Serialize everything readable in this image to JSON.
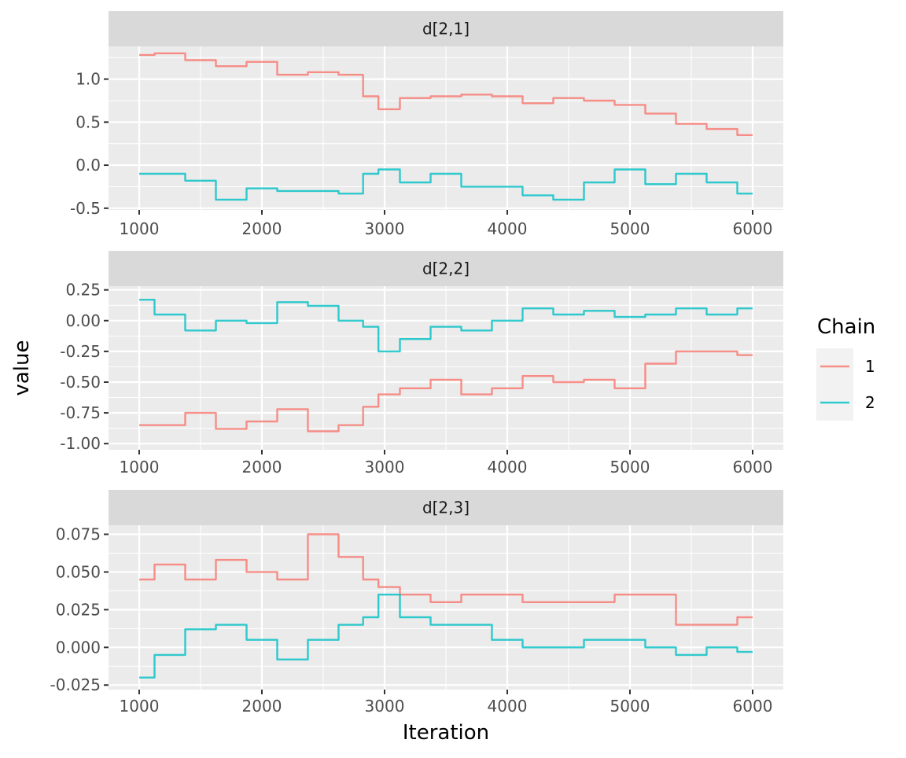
{
  "x_axis_title": "Iteration",
  "y_axis_title": "value",
  "legend": {
    "title": "Chain",
    "items": [
      {
        "label": "1",
        "color": "#F8766D"
      },
      {
        "label": "2",
        "color": "#00BFC4"
      }
    ]
  },
  "chart_data": [
    {
      "type": "line",
      "panel": "d[2,1]",
      "xlabel": "Iteration",
      "ylabel": "value",
      "xlim": [
        750,
        6250
      ],
      "ylim": [
        -0.52,
        1.38
      ],
      "xticks": [
        1000,
        2000,
        3000,
        4000,
        5000,
        6000
      ],
      "xtick_labels": [
        "1000",
        "2000",
        "3000",
        "4000",
        "5000",
        "6000"
      ],
      "yticks": [
        -0.5,
        0,
        0.5,
        1
      ],
      "ytick_labels": [
        "-0.5",
        "0.0",
        "0.5",
        "1.0"
      ],
      "x": [
        1000,
        1250,
        1500,
        1750,
        2000,
        2250,
        2500,
        2750,
        2900,
        3000,
        3250,
        3500,
        3750,
        4000,
        4250,
        4500,
        4750,
        5000,
        5250,
        5500,
        5750,
        6000
      ],
      "series": [
        {
          "name": "1",
          "color": "#F8766D",
          "values": [
            1.28,
            1.3,
            1.22,
            1.15,
            1.2,
            1.05,
            1.08,
            1.05,
            0.8,
            0.65,
            0.78,
            0.8,
            0.82,
            0.8,
            0.72,
            0.78,
            0.75,
            0.7,
            0.6,
            0.48,
            0.42,
            0.35
          ]
        },
        {
          "name": "2",
          "color": "#00BFC4",
          "values": [
            -0.1,
            -0.1,
            -0.18,
            -0.4,
            -0.27,
            -0.3,
            -0.3,
            -0.33,
            -0.1,
            -0.05,
            -0.2,
            -0.1,
            -0.25,
            -0.25,
            -0.35,
            -0.4,
            -0.2,
            -0.05,
            -0.22,
            -0.1,
            -0.2,
            -0.33
          ]
        }
      ]
    },
    {
      "type": "line",
      "panel": "d[2,2]",
      "xlabel": "Iteration",
      "ylabel": "value",
      "xlim": [
        750,
        6250
      ],
      "ylim": [
        -1.05,
        0.28
      ],
      "xticks": [
        1000,
        2000,
        3000,
        4000,
        5000,
        6000
      ],
      "xtick_labels": [
        "1000",
        "2000",
        "3000",
        "4000",
        "5000",
        "6000"
      ],
      "yticks": [
        -1,
        -0.75,
        -0.5,
        -0.25,
        0,
        0.25
      ],
      "ytick_labels": [
        "-1.00",
        "-0.75",
        "-0.50",
        "-0.25",
        "0.00",
        "0.25"
      ],
      "x": [
        1000,
        1250,
        1500,
        1750,
        2000,
        2250,
        2500,
        2750,
        2900,
        3000,
        3250,
        3500,
        3750,
        4000,
        4250,
        4500,
        4750,
        5000,
        5250,
        5500,
        5750,
        6000
      ],
      "series": [
        {
          "name": "1",
          "color": "#F8766D",
          "values": [
            -0.85,
            -0.85,
            -0.75,
            -0.88,
            -0.82,
            -0.72,
            -0.9,
            -0.85,
            -0.7,
            -0.6,
            -0.55,
            -0.48,
            -0.6,
            -0.55,
            -0.45,
            -0.5,
            -0.48,
            -0.55,
            -0.35,
            -0.25,
            -0.25,
            -0.28
          ]
        },
        {
          "name": "2",
          "color": "#00BFC4",
          "values": [
            0.17,
            0.05,
            -0.08,
            0.0,
            -0.02,
            0.15,
            0.12,
            0.0,
            -0.05,
            -0.25,
            -0.15,
            -0.05,
            -0.08,
            0.0,
            0.1,
            0.05,
            0.08,
            0.03,
            0.05,
            0.1,
            0.05,
            0.1
          ]
        }
      ]
    },
    {
      "type": "line",
      "panel": "d[2,3]",
      "xlabel": "Iteration",
      "ylabel": "value",
      "xlim": [
        750,
        6250
      ],
      "ylim": [
        -0.028,
        0.081
      ],
      "xticks": [
        1000,
        2000,
        3000,
        4000,
        5000,
        6000
      ],
      "xtick_labels": [
        "1000",
        "2000",
        "3000",
        "4000",
        "5000",
        "6000"
      ],
      "yticks": [
        -0.025,
        0,
        0.025,
        0.05,
        0.075
      ],
      "ytick_labels": [
        "-0.025",
        "0.000",
        "0.025",
        "0.050",
        "0.075"
      ],
      "x": [
        1000,
        1250,
        1500,
        1750,
        2000,
        2250,
        2500,
        2750,
        2900,
        3000,
        3250,
        3500,
        3750,
        4000,
        4250,
        4500,
        4750,
        5000,
        5250,
        5500,
        5750,
        6000
      ],
      "series": [
        {
          "name": "1",
          "color": "#F8766D",
          "values": [
            0.045,
            0.055,
            0.045,
            0.058,
            0.05,
            0.045,
            0.075,
            0.06,
            0.045,
            0.04,
            0.035,
            0.03,
            0.035,
            0.035,
            0.03,
            0.03,
            0.03,
            0.035,
            0.035,
            0.015,
            0.015,
            0.02
          ]
        },
        {
          "name": "2",
          "color": "#00BFC4",
          "values": [
            -0.02,
            -0.005,
            0.012,
            0.015,
            0.005,
            -0.008,
            0.005,
            0.015,
            0.02,
            0.035,
            0.02,
            0.015,
            0.015,
            0.005,
            0.0,
            0.0,
            0.005,
            0.005,
            0.0,
            -0.005,
            0.0,
            -0.003
          ]
        }
      ]
    }
  ]
}
